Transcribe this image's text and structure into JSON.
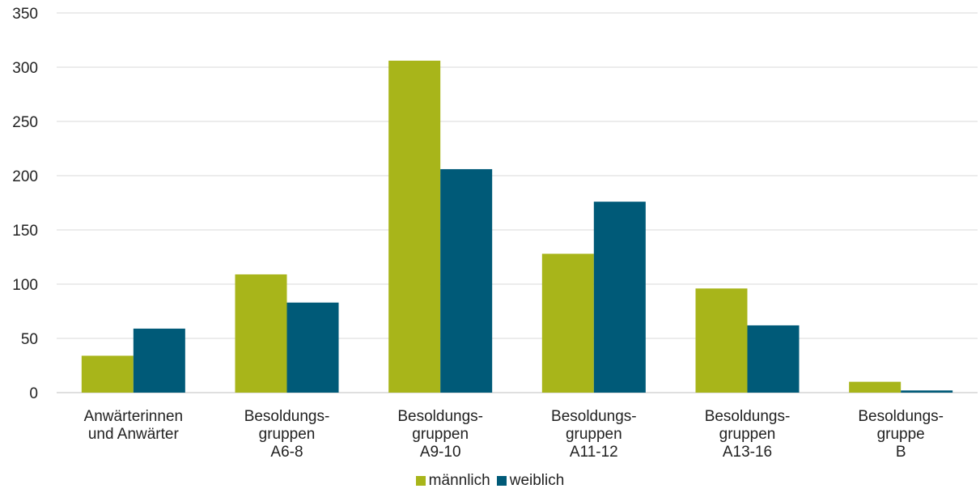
{
  "chart_data": {
    "type": "bar",
    "title": "",
    "categories": [
      [
        "Anwärterinnen",
        "und Anwärter"
      ],
      [
        "Besoldungs-",
        "gruppen",
        "A6-8"
      ],
      [
        "Besoldungs-",
        "gruppen",
        "A9-10"
      ],
      [
        "Besoldungs-",
        "gruppen",
        "A11-12"
      ],
      [
        "Besoldungs-",
        "gruppen",
        "A13-16"
      ],
      [
        "Besoldungs-",
        "gruppe",
        "B"
      ]
    ],
    "series": [
      {
        "name": "männlich",
        "color": "#a8b51a",
        "values": [
          34,
          109,
          306,
          128,
          96,
          10
        ]
      },
      {
        "name": "weiblich",
        "color": "#005a78",
        "values": [
          59,
          83,
          206,
          176,
          62,
          2
        ]
      }
    ],
    "ylim": [
      0,
      350
    ],
    "yticks": [
      0,
      50,
      100,
      150,
      200,
      250,
      300,
      350
    ],
    "grid": true,
    "legend_position": "bottom"
  }
}
